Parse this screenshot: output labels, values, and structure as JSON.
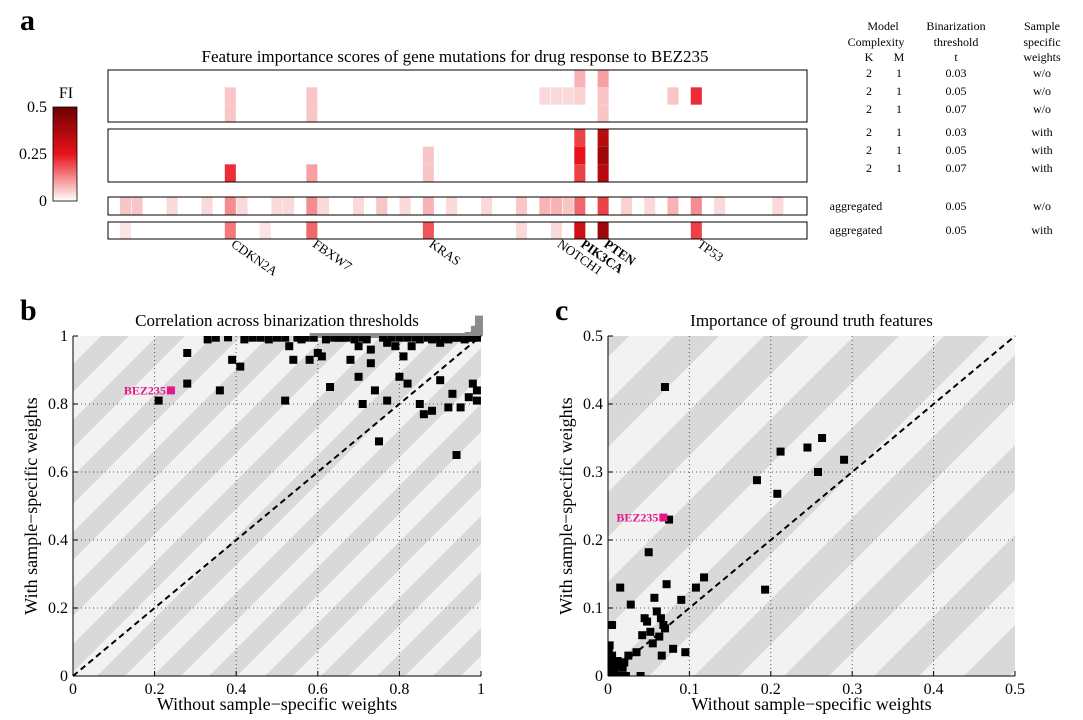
{
  "panel_a": {
    "letter": "a",
    "title": "Feature importance scores of gene mutations for drug response to BEZ235",
    "colorbar": {
      "label": "FI",
      "ticks": [
        "0.5",
        "0.25",
        "0"
      ],
      "color_max": "#6e0000",
      "color_mid": "#e8121a",
      "color_min": "#ffffff"
    },
    "table_headers": {
      "model": [
        "Model",
        "Complexity"
      ],
      "k": "K",
      "m": "M",
      "bin": [
        "Binarization",
        "threshold",
        "t"
      ],
      "sample": [
        "Sample",
        "specific",
        "weights"
      ]
    },
    "rows": [
      {
        "k": "2",
        "m": "1",
        "t": "0.03",
        "w": "w/o"
      },
      {
        "k": "2",
        "m": "1",
        "t": "0.05",
        "w": "w/o"
      },
      {
        "k": "2",
        "m": "1",
        "t": "0.07",
        "w": "w/o"
      },
      {
        "k": "2",
        "m": "1",
        "t": "0.03",
        "w": "with"
      },
      {
        "k": "2",
        "m": "1",
        "t": "0.05",
        "w": "with"
      },
      {
        "k": "2",
        "m": "1",
        "t": "0.07",
        "w": "with"
      },
      {
        "agg": "aggregated",
        "t": "0.05",
        "w": "w/o"
      },
      {
        "agg": "aggregated",
        "t": "0.05",
        "w": "with"
      }
    ],
    "genes": [
      {
        "name": "CDKN2A",
        "bold": false
      },
      {
        "name": "FBXW7",
        "bold": false
      },
      {
        "name": "KRAS",
        "bold": false
      },
      {
        "name": "NOTCH1",
        "bold": false
      },
      {
        "name": "PIK3CA",
        "bold": true
      },
      {
        "name": "PTEN",
        "bold": true
      },
      {
        "name": "TP53",
        "bold": false
      }
    ]
  },
  "chart_data": [
    {
      "type": "scatter",
      "panel": "b",
      "title": "Correlation across binarization thresholds",
      "xlabel": "Without sample−specific weights",
      "ylabel": "With sample−specific weights",
      "xlim": [
        0,
        1
      ],
      "ylim": [
        0,
        1
      ],
      "xticks": [
        "0",
        "0.2",
        "0.4",
        "0.6",
        "0.8",
        "1"
      ],
      "yticks": [
        "0",
        "0.2",
        "0.4",
        "0.6",
        "0.8",
        "1"
      ],
      "grid": true,
      "highlight": {
        "label": "BEZ235",
        "x": 0.24,
        "y": 0.84,
        "color": "#e5178c"
      },
      "points": [
        [
          0.21,
          0.81
        ],
        [
          0.28,
          0.86
        ],
        [
          0.28,
          0.95
        ],
        [
          0.33,
          0.99
        ],
        [
          0.35,
          0.995
        ],
        [
          0.36,
          0.84
        ],
        [
          0.38,
          0.996
        ],
        [
          0.39,
          0.93
        ],
        [
          0.41,
          0.91
        ],
        [
          0.42,
          0.99
        ],
        [
          0.44,
          0.995
        ],
        [
          0.46,
          0.995
        ],
        [
          0.48,
          0.99
        ],
        [
          0.5,
          0.995
        ],
        [
          0.52,
          0.995
        ],
        [
          0.52,
          0.81
        ],
        [
          0.53,
          0.97
        ],
        [
          0.54,
          0.93
        ],
        [
          0.55,
          0.995
        ],
        [
          0.56,
          0.99
        ],
        [
          0.57,
          0.995
        ],
        [
          0.58,
          0.93
        ],
        [
          0.59,
          0.995
        ],
        [
          0.6,
          0.95
        ],
        [
          0.61,
          0.94
        ],
        [
          0.62,
          0.99
        ],
        [
          0.63,
          0.85
        ],
        [
          0.64,
          0.995
        ],
        [
          0.65,
          0.995
        ],
        [
          0.66,
          0.995
        ],
        [
          0.67,
          0.995
        ],
        [
          0.68,
          0.93
        ],
        [
          0.69,
          0.99
        ],
        [
          0.7,
          0.97
        ],
        [
          0.7,
          0.88
        ],
        [
          0.71,
          0.995
        ],
        [
          0.71,
          0.8
        ],
        [
          0.72,
          0.99
        ],
        [
          0.73,
          0.96
        ],
        [
          0.73,
          0.92
        ],
        [
          0.74,
          0.84
        ],
        [
          0.75,
          0.69
        ],
        [
          0.76,
          0.995
        ],
        [
          0.77,
          0.98
        ],
        [
          0.77,
          0.81
        ],
        [
          0.78,
          0.995
        ],
        [
          0.79,
          0.97
        ],
        [
          0.8,
          0.995
        ],
        [
          0.8,
          0.88
        ],
        [
          0.81,
          0.94
        ],
        [
          0.82,
          0.995
        ],
        [
          0.82,
          0.86
        ],
        [
          0.83,
          0.97
        ],
        [
          0.84,
          0.995
        ],
        [
          0.85,
          0.99
        ],
        [
          0.85,
          0.8
        ],
        [
          0.86,
          0.77
        ],
        [
          0.87,
          0.995
        ],
        [
          0.88,
          0.99
        ],
        [
          0.88,
          0.78
        ],
        [
          0.89,
          0.995
        ],
        [
          0.9,
          0.98
        ],
        [
          0.9,
          0.87
        ],
        [
          0.91,
          0.995
        ],
        [
          0.92,
          0.99
        ],
        [
          0.92,
          0.79
        ],
        [
          0.93,
          0.995
        ],
        [
          0.93,
          0.83
        ],
        [
          0.94,
          0.995
        ],
        [
          0.94,
          0.65
        ],
        [
          0.95,
          0.79
        ],
        [
          0.95,
          0.995
        ],
        [
          0.96,
          0.99
        ],
        [
          0.97,
          0.82
        ],
        [
          0.97,
          0.995
        ],
        [
          0.98,
          0.86
        ],
        [
          0.98,
          0.995
        ],
        [
          0.99,
          0.84
        ],
        [
          0.99,
          0.81
        ],
        [
          0.995,
          0.995
        ]
      ]
    },
    {
      "type": "scatter",
      "panel": "c",
      "title": "Importance of ground truth features",
      "xlabel": "Without sample−specific weights",
      "ylabel": "With sample−specific weights",
      "xlim": [
        0,
        0.5
      ],
      "ylim": [
        0,
        0.5
      ],
      "xticks": [
        "0",
        "0.1",
        "0.2",
        "0.3",
        "0.4",
        "0.5"
      ],
      "yticks": [
        "0",
        "0.1",
        "0.2",
        "0.3",
        "0.4",
        "0.5"
      ],
      "grid": true,
      "highlight": {
        "label": "BEZ235",
        "x": 0.068,
        "y": 0.233,
        "color": "#e5178c"
      },
      "points": [
        [
          0.0,
          0.0
        ],
        [
          0.002,
          0.005
        ],
        [
          0.003,
          0.012
        ],
        [
          0.004,
          0.02
        ],
        [
          0.005,
          0.03
        ],
        [
          0.001,
          0.04
        ],
        [
          0.002,
          0.045
        ],
        [
          0.006,
          0.0
        ],
        [
          0.008,
          0.008
        ],
        [
          0.01,
          0.015
        ],
        [
          0.012,
          0.022
        ],
        [
          0.015,
          0.0
        ],
        [
          0.018,
          0.012
        ],
        [
          0.02,
          0.02
        ],
        [
          0.022,
          0.0
        ],
        [
          0.005,
          0.075
        ],
        [
          0.015,
          0.13
        ],
        [
          0.025,
          0.03
        ],
        [
          0.028,
          0.105
        ],
        [
          0.035,
          0.035
        ],
        [
          0.04,
          0.0
        ],
        [
          0.042,
          0.06
        ],
        [
          0.045,
          0.085
        ],
        [
          0.048,
          0.08
        ],
        [
          0.05,
          0.182
        ],
        [
          0.052,
          0.065
        ],
        [
          0.055,
          0.048
        ],
        [
          0.057,
          0.115
        ],
        [
          0.06,
          0.095
        ],
        [
          0.063,
          0.058
        ],
        [
          0.065,
          0.085
        ],
        [
          0.066,
          0.03
        ],
        [
          0.068,
          0.075
        ],
        [
          0.07,
          0.07
        ],
        [
          0.07,
          0.425
        ],
        [
          0.072,
          0.135
        ],
        [
          0.075,
          0.23
        ],
        [
          0.08,
          0.04
        ],
        [
          0.09,
          0.112
        ],
        [
          0.095,
          0.035
        ],
        [
          0.108,
          0.13
        ],
        [
          0.118,
          0.145
        ],
        [
          0.183,
          0.288
        ],
        [
          0.193,
          0.127
        ],
        [
          0.208,
          0.268
        ],
        [
          0.212,
          0.33
        ],
        [
          0.245,
          0.336
        ],
        [
          0.258,
          0.3
        ],
        [
          0.263,
          0.35
        ],
        [
          0.29,
          0.318
        ]
      ]
    },
    {
      "type": "heatmap",
      "panel": "a",
      "title": "Feature importance scores of gene mutations for drug response to BEZ235",
      "value_range": [
        0,
        0.5
      ],
      "n_columns": 60,
      "x_tick_labels": [
        "CDKN2A",
        "FBXW7",
        "KRAS",
        "NOTCH1",
        "PIK3CA",
        "PTEN",
        "TP53"
      ],
      "x_tick_columns": [
        10,
        17,
        27,
        38,
        40,
        42,
        50
      ],
      "blocks": [
        {
          "rows": 3,
          "cells": [
            [
              0,
              40,
              0.08
            ],
            [
              0,
              42,
              0.1
            ],
            [
              1,
              10,
              0.06
            ],
            [
              1,
              17,
              0.06
            ],
            [
              1,
              37,
              0.04
            ],
            [
              1,
              38,
              0.04
            ],
            [
              1,
              39,
              0.04
            ],
            [
              1,
              40,
              0.05
            ],
            [
              1,
              42,
              0.06
            ],
            [
              1,
              48,
              0.06
            ],
            [
              1,
              50,
              0.22
            ],
            [
              2,
              10,
              0.06
            ],
            [
              2,
              17,
              0.06
            ],
            [
              2,
              42,
              0.06
            ]
          ]
        },
        {
          "rows": 3,
          "cells": [
            [
              0,
              40,
              0.2
            ],
            [
              0,
              42,
              0.35
            ],
            [
              1,
              27,
              0.06
            ],
            [
              1,
              40,
              0.25
            ],
            [
              1,
              42,
              0.4
            ],
            [
              2,
              10,
              0.22
            ],
            [
              2,
              17,
              0.1
            ],
            [
              2,
              27,
              0.06
            ],
            [
              2,
              40,
              0.2
            ],
            [
              2,
              42,
              0.35
            ]
          ]
        },
        {
          "rows": 1,
          "cells": [
            [
              0,
              1,
              0.06
            ],
            [
              0,
              2,
              0.06
            ],
            [
              0,
              5,
              0.04
            ],
            [
              0,
              8,
              0.04
            ],
            [
              0,
              10,
              0.12
            ],
            [
              0,
              11,
              0.04
            ],
            [
              0,
              14,
              0.04
            ],
            [
              0,
              15,
              0.04
            ],
            [
              0,
              17,
              0.12
            ],
            [
              0,
              18,
              0.04
            ],
            [
              0,
              21,
              0.04
            ],
            [
              0,
              23,
              0.06
            ],
            [
              0,
              25,
              0.04
            ],
            [
              0,
              27,
              0.08
            ],
            [
              0,
              29,
              0.04
            ],
            [
              0,
              32,
              0.04
            ],
            [
              0,
              35,
              0.06
            ],
            [
              0,
              37,
              0.08
            ],
            [
              0,
              38,
              0.08
            ],
            [
              0,
              39,
              0.06
            ],
            [
              0,
              40,
              0.16
            ],
            [
              0,
              42,
              0.2
            ],
            [
              0,
              44,
              0.05
            ],
            [
              0,
              46,
              0.04
            ],
            [
              0,
              48,
              0.08
            ],
            [
              0,
              50,
              0.12
            ],
            [
              0,
              52,
              0.04
            ],
            [
              0,
              57,
              0.04
            ]
          ]
        },
        {
          "rows": 1,
          "cells": [
            [
              0,
              1,
              0.03
            ],
            [
              0,
              10,
              0.14
            ],
            [
              0,
              13,
              0.03
            ],
            [
              0,
              17,
              0.16
            ],
            [
              0,
              27,
              0.18
            ],
            [
              0,
              35,
              0.04
            ],
            [
              0,
              38,
              0.04
            ],
            [
              0,
              40,
              0.3
            ],
            [
              0,
              42,
              0.4
            ],
            [
              0,
              50,
              0.2
            ]
          ]
        }
      ]
    }
  ]
}
